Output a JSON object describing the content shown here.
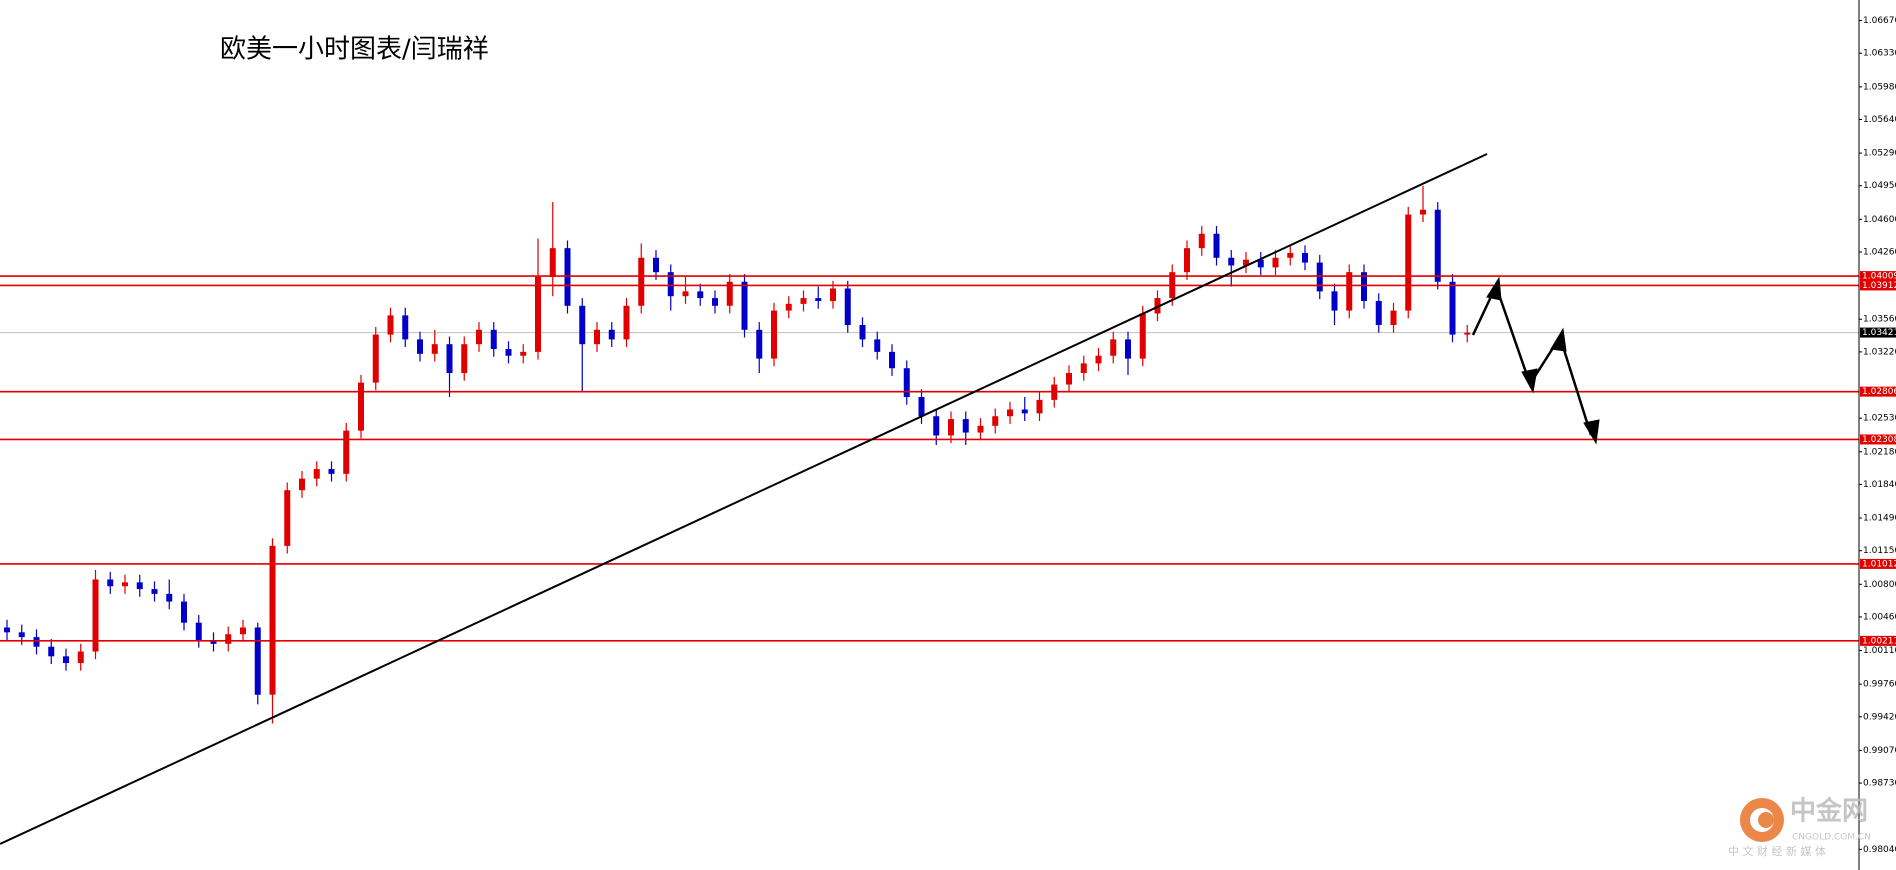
{
  "chart_data": {
    "type": "candlestick",
    "title": "欧美一小时图表/闫瑞祥",
    "up_color": "#e00000",
    "down_color": "#0000c8",
    "ylim": [
      0.97825,
      1.06884
    ],
    "yticks": [
      {
        "value": 1.0667,
        "label": "1.06670"
      },
      {
        "value": 1.0633,
        "label": "1.06330"
      },
      {
        "value": 1.0598,
        "label": "1.05980"
      },
      {
        "value": 1.0564,
        "label": "1.05640"
      },
      {
        "value": 1.0529,
        "label": "1.05290"
      },
      {
        "value": 1.0495,
        "label": "1.04950"
      },
      {
        "value": 1.046,
        "label": "1.04600"
      },
      {
        "value": 1.0426,
        "label": "1.04260"
      },
      {
        "value": 1.0356,
        "label": "1.03560"
      },
      {
        "value": 1.0322,
        "label": "1.03220"
      },
      {
        "value": 1.0253,
        "label": "1.02530"
      },
      {
        "value": 1.0218,
        "label": "1.02180"
      },
      {
        "value": 1.0184,
        "label": "1.01840"
      },
      {
        "value": 1.0149,
        "label": "1.01490"
      },
      {
        "value": 1.0115,
        "label": "1.01150"
      },
      {
        "value": 1.008,
        "label": "1.00800"
      },
      {
        "value": 1.0046,
        "label": "1.00460"
      },
      {
        "value": 1.0011,
        "label": "1.00110"
      },
      {
        "value": 0.9976,
        "label": "0.99760"
      },
      {
        "value": 0.9942,
        "label": "0.99420"
      },
      {
        "value": 0.9907,
        "label": "0.99070"
      },
      {
        "value": 0.9873,
        "label": "0.98730"
      },
      {
        "value": 0.9804,
        "label": "0.98040"
      }
    ],
    "levels": [
      1.04009,
      1.03912,
      1.02806,
      1.02308,
      1.01012,
      1.00211
    ],
    "level_color": "#e00000",
    "current_price": 1.03421,
    "open": [
      1.0035,
      1.003,
      1.0025,
      1.0015,
      1.0005,
      0.9998,
      1.001,
      1.0085,
      1.0078,
      1.0082,
      1.0075,
      1.007,
      1.0062,
      1.004,
      1.0022,
      1.0018,
      1.0028,
      1.0035,
      0.9965,
      1.012,
      1.0178,
      1.019,
      1.02,
      1.0195,
      1.024,
      1.029,
      1.034,
      1.036,
      1.0335,
      1.032,
      1.033,
      1.03,
      1.033,
      1.0345,
      1.0325,
      1.0318,
      1.0322,
      1.04,
      1.043,
      1.037,
      1.033,
      1.0345,
      1.0335,
      1.037,
      1.042,
      1.0405,
      1.038,
      1.0385,
      1.0378,
      1.037,
      1.0395,
      1.0345,
      1.0315,
      1.0365,
      1.0372,
      1.0378,
      1.0375,
      1.0388,
      1.035,
      1.0335,
      1.0322,
      1.0305,
      1.0275,
      1.0255,
      1.0235,
      1.0252,
      1.0238,
      1.0245,
      1.0255,
      1.0262,
      1.0258,
      1.0272,
      1.0288,
      1.03,
      1.031,
      1.0318,
      1.0335,
      1.0315,
      1.0362,
      1.0378,
      1.0405,
      1.043,
      1.0445,
      1.042,
      1.0412,
      1.0418,
      1.041,
      1.042,
      1.0425,
      1.0415,
      1.0385,
      1.0365,
      1.0405,
      1.0375,
      1.035,
      1.0365,
      1.0465,
      1.047,
      1.0395,
      1.034
    ],
    "high": [
      1.0043,
      1.0038,
      1.0033,
      1.0023,
      1.0013,
      1.0018,
      1.0095,
      1.0093,
      1.009,
      1.009,
      1.0083,
      1.0085,
      1.007,
      1.0048,
      1.003,
      1.0036,
      1.0043,
      1.004,
      1.0128,
      1.0186,
      1.0198,
      1.0208,
      1.0208,
      1.0248,
      1.0298,
      1.0348,
      1.0368,
      1.0368,
      1.0343,
      1.0345,
      1.0338,
      1.0338,
      1.0353,
      1.0353,
      1.0333,
      1.033,
      1.044,
      1.0478,
      1.0438,
      1.0378,
      1.0353,
      1.0353,
      1.0378,
      1.0435,
      1.0428,
      1.0413,
      1.04,
      1.0393,
      1.0386,
      1.0403,
      1.0403,
      1.0353,
      1.0373,
      1.038,
      1.0386,
      1.039,
      1.0396,
      1.0396,
      1.0358,
      1.0343,
      1.033,
      1.0313,
      1.0283,
      1.0263,
      1.026,
      1.026,
      1.0253,
      1.0263,
      1.027,
      1.0275,
      1.028,
      1.0296,
      1.0308,
      1.0318,
      1.0326,
      1.0343,
      1.0343,
      1.037,
      1.0386,
      1.0413,
      1.0438,
      1.0453,
      1.0453,
      1.0428,
      1.0426,
      1.0426,
      1.0428,
      1.0433,
      1.0433,
      1.0423,
      1.0393,
      1.0413,
      1.0413,
      1.0383,
      1.0373,
      1.0473,
      1.0495,
      1.0478,
      1.0403,
      1.035
    ],
    "low": [
      1.0022,
      1.0017,
      1.0007,
      0.9997,
      0.999,
      0.999,
      1.0002,
      1.007,
      1.007,
      1.0067,
      1.0062,
      1.0054,
      1.0032,
      1.0014,
      1.001,
      1.001,
      1.002,
      0.9955,
      0.9935,
      1.0112,
      1.017,
      1.0182,
      1.0187,
      1.0187,
      1.0232,
      1.0282,
      1.0332,
      1.0327,
      1.0312,
      1.0312,
      1.0275,
      1.0292,
      1.0322,
      1.0317,
      1.031,
      1.031,
      1.0314,
      1.038,
      1.0362,
      1.028,
      1.0322,
      1.0327,
      1.0327,
      1.0362,
      1.0397,
      1.0365,
      1.0372,
      1.037,
      1.0362,
      1.0362,
      1.0337,
      1.03,
      1.0307,
      1.0357,
      1.0364,
      1.0367,
      1.0367,
      1.0342,
      1.0327,
      1.0314,
      1.0297,
      1.0267,
      1.0247,
      1.0225,
      1.0227,
      1.0225,
      1.023,
      1.0237,
      1.0247,
      1.025,
      1.025,
      1.0264,
      1.028,
      1.0292,
      1.0302,
      1.031,
      1.0298,
      1.0307,
      1.0354,
      1.037,
      1.0397,
      1.0422,
      1.0412,
      1.039,
      1.0404,
      1.0402,
      1.0402,
      1.0412,
      1.0407,
      1.0377,
      1.035,
      1.0357,
      1.0367,
      1.0342,
      1.0342,
      1.0357,
      1.0457,
      1.0387,
      1.0332,
      1.0332
    ],
    "close": [
      1.003,
      1.0025,
      1.0015,
      1.0005,
      0.9998,
      1.001,
      1.0085,
      1.0078,
      1.0082,
      1.0075,
      1.007,
      1.0062,
      1.004,
      1.0022,
      1.0018,
      1.0028,
      1.0035,
      0.9965,
      1.012,
      1.0178,
      1.019,
      1.02,
      1.0195,
      1.024,
      1.029,
      1.034,
      1.036,
      1.0335,
      1.032,
      1.033,
      1.03,
      1.033,
      1.0345,
      1.0325,
      1.0318,
      1.0322,
      1.04,
      1.043,
      1.037,
      1.033,
      1.0345,
      1.0335,
      1.037,
      1.042,
      1.0405,
      1.038,
      1.0385,
      1.0378,
      1.037,
      1.0395,
      1.0345,
      1.0315,
      1.0365,
      1.0372,
      1.0378,
      1.0375,
      1.0388,
      1.035,
      1.0335,
      1.0322,
      1.0305,
      1.0275,
      1.0255,
      1.0235,
      1.0252,
      1.0238,
      1.0245,
      1.0255,
      1.0262,
      1.0258,
      1.0272,
      1.0288,
      1.03,
      1.031,
      1.0318,
      1.0335,
      1.0315,
      1.0362,
      1.0378,
      1.0405,
      1.043,
      1.0445,
      1.042,
      1.0412,
      1.0418,
      1.041,
      1.042,
      1.0425,
      1.0415,
      1.0385,
      1.0365,
      1.0405,
      1.0375,
      1.035,
      1.0365,
      1.0465,
      1.047,
      1.0395,
      1.034,
      1.0342
    ]
  },
  "watermark": {
    "brand": "中金网",
    "domain": "CNGOLD.COM.CN",
    "tagline": "中 文 财 经 新 媒 体"
  }
}
